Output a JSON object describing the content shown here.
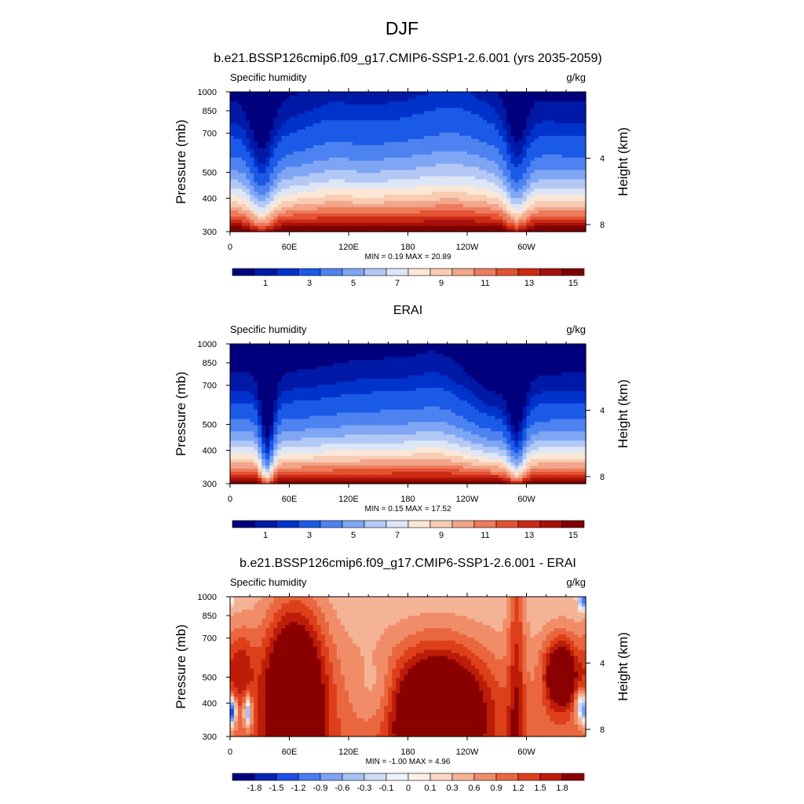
{
  "figure": {
    "title": "DJF"
  },
  "colors": {
    "moist_palette": [
      "#00007f",
      "#0019a6",
      "#0033cc",
      "#1a5ae6",
      "#4d82f0",
      "#7fa6f5",
      "#b3c8f5",
      "#dde6f7",
      "#fbe7d6",
      "#f8ccb2",
      "#f2a58a",
      "#ec7c5c",
      "#e45234",
      "#cc2a12",
      "#a6100a",
      "#7f0000"
    ],
    "diff_palette": [
      "#00007f",
      "#0025b3",
      "#1a50e6",
      "#4a7bf0",
      "#7ea3f5",
      "#a9c2f5",
      "#cfdcf7",
      "#eef2fa",
      "#fbf0e8",
      "#fad7c4",
      "#f5b396",
      "#f08d68",
      "#ea663e",
      "#dc3f1a",
      "#bc1c08",
      "#8a0000"
    ]
  },
  "chart_data": [
    {
      "type": "heatmap",
      "panel_title": "b.e21.BSSP126cmip6.f09_g17.CMIP6-SSP1-2.6.001 (yrs 2035-2059)",
      "left_label": "Specific humidity",
      "right_label": "g/kg",
      "ylabel": "Pressure (mb)",
      "y2label": "Height (km)",
      "xticks": [
        "0",
        "60E",
        "120E",
        "180",
        "120W",
        "60W"
      ],
      "yticks": [
        "300",
        "400",
        "500",
        "700",
        "850",
        "1000"
      ],
      "y2ticks": [
        "8",
        "4"
      ],
      "stats": "MIN =   0.19  MAX =  20.89",
      "colorbar_labels": [
        "1",
        "3",
        "5",
        "7",
        "9",
        "11",
        "13",
        "15"
      ],
      "colorbar_levels": [
        0.5,
        1,
        1.5,
        2,
        3,
        4,
        5,
        6,
        7,
        8,
        9,
        10,
        11,
        12,
        13,
        14,
        15,
        16
      ],
      "min": 0.19,
      "max": 20.89,
      "xlim": [
        0,
        360
      ],
      "ylim_mb": [
        1000,
        300
      ],
      "kind": "moist",
      "variant": "model",
      "topography": true
    },
    {
      "type": "heatmap",
      "panel_title": "ERAI",
      "left_label": "Specific humidity",
      "right_label": "g/kg",
      "ylabel": "Pressure (mb)",
      "y2label": "Height (km)",
      "xticks": [
        "0",
        "60E",
        "120E",
        "180",
        "120W",
        "60W"
      ],
      "yticks": [
        "300",
        "400",
        "500",
        "700",
        "850",
        "1000"
      ],
      "y2ticks": [
        "8",
        "4"
      ],
      "stats": "MIN =   0.15  MAX =  17.52",
      "colorbar_labels": [
        "1",
        "3",
        "5",
        "7",
        "9",
        "11",
        "13",
        "15"
      ],
      "colorbar_levels": [
        0.5,
        1,
        1.5,
        2,
        3,
        4,
        5,
        6,
        7,
        8,
        9,
        10,
        11,
        12,
        13,
        14,
        15,
        16
      ],
      "min": 0.15,
      "max": 17.52,
      "xlim": [
        0,
        360
      ],
      "ylim_mb": [
        1000,
        300
      ],
      "kind": "moist",
      "variant": "obs",
      "topography": false
    },
    {
      "type": "heatmap",
      "panel_title": "b.e21.BSSP126cmip6.f09_g17.CMIP6-SSP1-2.6.001 - ERAI",
      "left_label": "Specific humidity",
      "right_label": "g/kg",
      "ylabel": "Pressure (mb)",
      "y2label": "Height (km)",
      "xticks": [
        "0",
        "60E",
        "120E",
        "180",
        "120W",
        "60W"
      ],
      "yticks": [
        "300",
        "400",
        "500",
        "700",
        "850",
        "1000"
      ],
      "y2ticks": [
        "8",
        "4"
      ],
      "stats": "MIN =  -1.00  MAX =   4.96",
      "colorbar_labels": [
        "-1.8",
        "-1.5",
        "-1.2",
        "-0.9",
        "-0.6",
        "-0.3",
        "-0.1",
        "0",
        "0.1",
        "0.3",
        "0.6",
        "0.9",
        "1.2",
        "1.5",
        "1.8"
      ],
      "colorbar_levels": [
        -2.1,
        -1.8,
        -1.5,
        -1.2,
        -0.9,
        -0.6,
        -0.3,
        -0.1,
        0,
        0.1,
        0.3,
        0.6,
        0.9,
        1.2,
        1.5,
        1.8,
        2.1
      ],
      "min": -1.0,
      "max": 4.96,
      "xlim": [
        0,
        360
      ],
      "ylim_mb": [
        1000,
        300
      ],
      "kind": "diff",
      "variant": "diff",
      "topography": true
    }
  ]
}
